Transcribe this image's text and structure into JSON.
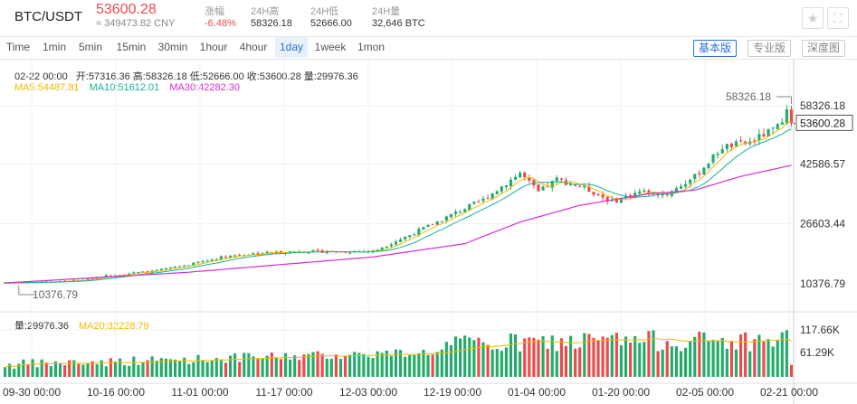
{
  "header": {
    "pair": "BTC/USDT",
    "price": "53600.28",
    "cny": "≈ 349473.82 CNY",
    "stats": [
      {
        "label": "涨幅",
        "value": "-6.48%",
        "color": "#e94b4b"
      },
      {
        "label": "24H高",
        "value": "58326.18",
        "color": "#333333"
      },
      {
        "label": "24H低",
        "value": "52666.00",
        "color": "#333333"
      },
      {
        "label": "24H量",
        "value": "32,646 BTC",
        "color": "#333333"
      }
    ]
  },
  "toolbar": {
    "tabs": [
      "Time",
      "1min",
      "5min",
      "15min",
      "30min",
      "1hour",
      "4hour",
      "1day",
      "1week",
      "1mon"
    ],
    "active_tab": "1day",
    "views": [
      "基本版",
      "专业版",
      "深度图"
    ],
    "active_view": "基本版"
  },
  "info": {
    "date": "02-22 00:00",
    "open": "开:57316.36",
    "high": "高:58326.18",
    "low": "低:52666.00",
    "close": "收:53600.28",
    "volume": "量:29976.36",
    "ma5": "MA5:54487.81",
    "ma10": "MA10:51612.01",
    "ma30": "MA30:42282.30",
    "vol_label": "量:29976.36",
    "ma20": "MA20:32228.79"
  },
  "colors": {
    "up": "#22ab6a",
    "down": "#e94b4b",
    "ma5": "#f5b800",
    "ma10": "#15b493",
    "ma30": "#d62bd6",
    "accent": "#2a6fd8"
  },
  "chart_data": {
    "type": "candlestick",
    "price_ticks": [
      "58326.18",
      "42586.57",
      "26603.44",
      "10376.79"
    ],
    "volume_ticks": [
      "117.66K",
      "61.29K"
    ],
    "x_ticks": [
      "09-30 00:00",
      "10-16 00:00",
      "11-01 00:00",
      "11-17 00:00",
      "12-03 00:00",
      "12-19 00:00",
      "01-04 00:00",
      "01-20 00:00",
      "02-05 00:00",
      "02-21 00:00"
    ],
    "last_price": "53600.28",
    "max_marker": "58326.18",
    "min_marker": "10376.79",
    "close_anchors": [
      [
        0,
        10680
      ],
      [
        8,
        10850
      ],
      [
        16,
        11300
      ],
      [
        24,
        12900
      ],
      [
        32,
        13700
      ],
      [
        40,
        15500
      ],
      [
        48,
        17800
      ],
      [
        56,
        18700
      ],
      [
        64,
        19150
      ],
      [
        72,
        19000
      ],
      [
        80,
        19150
      ],
      [
        88,
        23500
      ],
      [
        96,
        28300
      ],
      [
        104,
        33000
      ],
      [
        112,
        40200
      ],
      [
        116,
        35000
      ],
      [
        120,
        38500
      ],
      [
        126,
        36200
      ],
      [
        132,
        32500
      ],
      [
        138,
        35200
      ],
      [
        144,
        34500
      ],
      [
        150,
        39200
      ],
      [
        156,
        47200
      ],
      [
        162,
        48500
      ],
      [
        168,
        52500
      ],
      [
        170,
        57316
      ],
      [
        171,
        53600
      ]
    ],
    "ma30_anchors": [
      [
        0,
        10600
      ],
      [
        40,
        13500
      ],
      [
        80,
        17600
      ],
      [
        100,
        21200
      ],
      [
        112,
        27000
      ],
      [
        125,
        31500
      ],
      [
        140,
        34600
      ],
      [
        150,
        35600
      ],
      [
        160,
        39300
      ],
      [
        171,
        42282
      ]
    ],
    "price_range": [
      10376.79,
      58326.18
    ],
    "volume_max": 117660,
    "ma20_volume": 32228.79,
    "last_volume": 29976.36
  }
}
